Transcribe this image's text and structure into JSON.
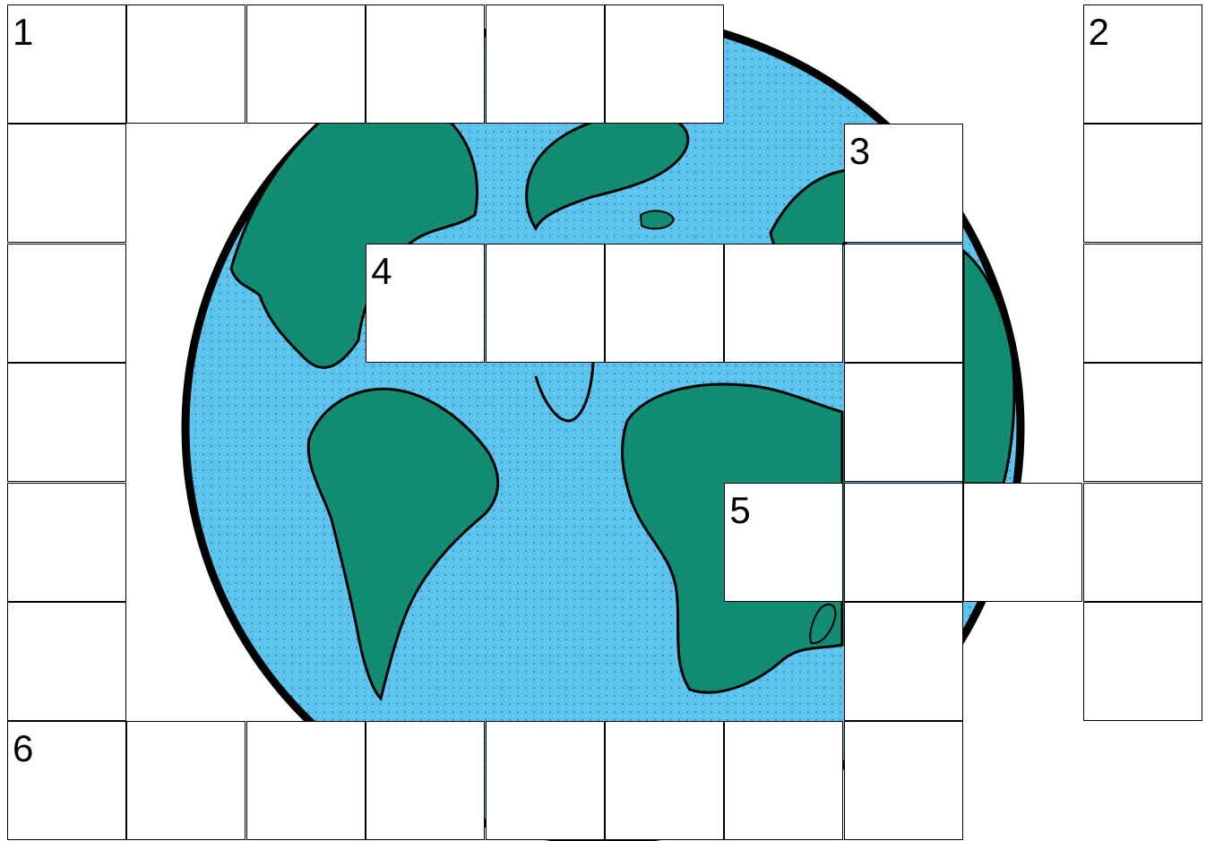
{
  "puzzle": {
    "image_icon": "globe-atlantic-icon",
    "colors": {
      "ocean": "#5cc3ec",
      "land": "#128c73",
      "outline": "#000000",
      "cell": "#ffffff"
    },
    "grid_rows": 7,
    "grid_cols": 10,
    "words": [
      {
        "number": "1",
        "direction": "across",
        "row": 0,
        "col": 0,
        "length": 6
      },
      {
        "number": "1",
        "direction": "down",
        "row": 0,
        "col": 0,
        "length": 7
      },
      {
        "number": "2",
        "direction": "down",
        "row": 0,
        "col": 9,
        "length": 6
      },
      {
        "number": "3",
        "direction": "down",
        "row": 1,
        "col": 7,
        "length": 6
      },
      {
        "number": "4",
        "direction": "across",
        "row": 2,
        "col": 3,
        "length": 5
      },
      {
        "number": "5",
        "direction": "across",
        "row": 4,
        "col": 6,
        "length": 4
      },
      {
        "number": "6",
        "direction": "across",
        "row": 6,
        "col": 0,
        "length": 8
      }
    ]
  }
}
